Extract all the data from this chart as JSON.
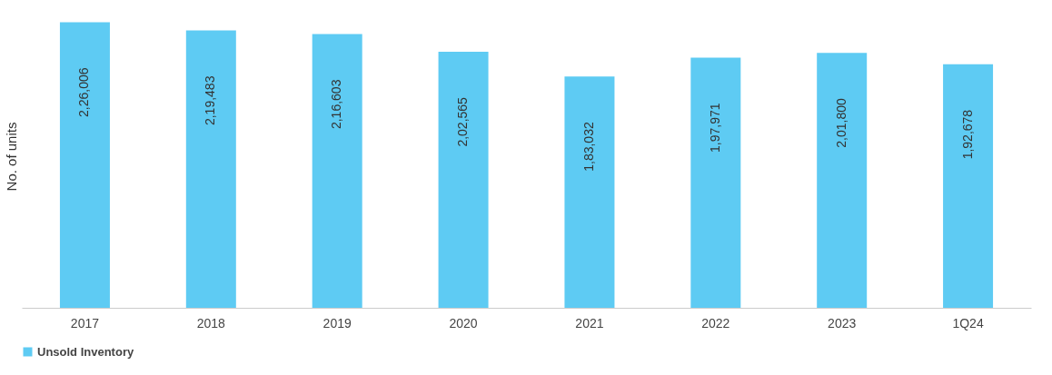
{
  "chart_data": {
    "type": "bar",
    "ylabel": "No. of units",
    "categories": [
      "2017",
      "2018",
      "2019",
      "2020",
      "2021",
      "2022",
      "2023",
      "1Q24"
    ],
    "series": [
      {
        "name": "Unsold Inventory",
        "color": "#5ecbf3",
        "values": [
          226006,
          219483,
          216603,
          202565,
          183032,
          197971,
          201800,
          192678
        ],
        "value_labels": [
          "2,26,006",
          "2,19,483",
          "2,16,603",
          "2,02,565",
          "1,83,032",
          "1,97,971",
          "2,01,800",
          "1,92,678"
        ]
      }
    ],
    "legend": "bottom",
    "grid": false
  }
}
